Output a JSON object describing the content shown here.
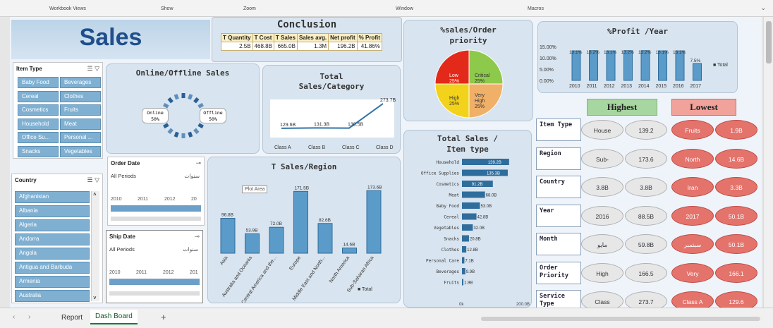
{
  "ribbon": {
    "groups": [
      "Workbook Views",
      "Show",
      "Zoom",
      "Window",
      "Macros"
    ]
  },
  "header": {
    "title": "Sales"
  },
  "conclusion": {
    "title": "Conclusion",
    "headers": [
      "T Quantity",
      "T Cost",
      "T Sales",
      "Sales avg.",
      "Net profit",
      "% Profit"
    ],
    "values": [
      "2.5B",
      "468.8B",
      "665.0B",
      "1.3M",
      "196.2B",
      "41.86%"
    ]
  },
  "item_type_slicer": {
    "title": "Item Type",
    "items": [
      "Baby Food",
      "Beverages",
      "Cereal",
      "Clothes",
      "Cosmetics",
      "Fruits",
      "Household",
      "Meat",
      "Office Su...",
      "Personal ...",
      "Snacks",
      "Vegetables"
    ]
  },
  "country_slicer": {
    "title": "Country",
    "items": [
      "Afghanistan",
      "Albania",
      "Algeria",
      "Andorra",
      "Angola",
      "Antigua and Barbuda",
      "Armenia",
      "Australia"
    ]
  },
  "order_date": {
    "title": "Order Date",
    "period": "All Periods",
    "unit": "سنوات",
    "years": [
      "2010",
      "2011",
      "2012",
      "20"
    ]
  },
  "ship_date": {
    "title": "Ship Date",
    "period": "All Periods",
    "unit": "سنوات",
    "years": [
      "2010",
      "2011",
      "2012",
      "201"
    ]
  },
  "online_offline": {
    "title": "Online/Offline Sales",
    "online_label": "Online",
    "online_value": "50%",
    "offline_label": "Offline",
    "offline_value": "50%"
  },
  "sales_category": {
    "title_line1": "Total",
    "title_line2": "Sales/Category"
  },
  "sales_region": {
    "title": "T Sales/Region",
    "tooltip": "Plot Area",
    "legend": "Total"
  },
  "sales_item": {
    "title_line1": "Total Sales /",
    "title_line2": "Item type",
    "axis_min": "0k",
    "axis_max": "200.0B"
  },
  "priority": {
    "title_line1": "%sales/Order",
    "title_line2": "priority",
    "quadrants": [
      {
        "label": "Low",
        "value": "25%",
        "color": "#e32a1a"
      },
      {
        "label": "Critical",
        "value": "25%",
        "color": "#8dc94a"
      },
      {
        "label": "High",
        "value": "25%",
        "color": "#f2d21a"
      },
      {
        "label": "Very High",
        "value": "25%",
        "color": "#f0b068"
      }
    ]
  },
  "profit_year": {
    "title": "%Profit /Year",
    "legend": "Total"
  },
  "highest_lowest": {
    "highest": "Highest",
    "lowest": "Lowest",
    "rows": [
      {
        "label": "Item Type",
        "high_name": "House",
        "high_value": "139.2",
        "low_name": "Fruits",
        "low_value": "1.9B"
      },
      {
        "label": "Region",
        "high_name": "Sub-",
        "high_value": "173.6",
        "low_name": "North",
        "low_value": "14.6B"
      },
      {
        "label": "Country",
        "high_name": "3.8B",
        "high_value": "3.8B",
        "low_name": "Iran",
        "low_value": "3.3B"
      },
      {
        "label": "Year",
        "high_name": "2016",
        "high_value": "88.5B",
        "low_name": "2017",
        "low_value": "50.1B"
      },
      {
        "label": "Month",
        "high_name": "مايو",
        "high_value": "59.8B",
        "low_name": "سبتمبر",
        "low_value": "50.1B"
      },
      {
        "label": "Order Priority",
        "high_name": "High",
        "high_value": "166.5",
        "low_name": "Very",
        "low_value": "166.1"
      },
      {
        "label": "Service Type",
        "high_name": "Class",
        "high_value": "273.7",
        "low_name": "Class A",
        "low_value": "129.6"
      }
    ]
  },
  "tabs": {
    "items": [
      "Report",
      "Dash Board"
    ],
    "add": "+"
  },
  "colors": {
    "accent": "#2f73a8",
    "bar": "#5b9bc9",
    "header_blue": "#1f4e8a"
  },
  "chart_data": [
    {
      "type": "line",
      "title": "Total Sales/Category",
      "categories": [
        "Class A",
        "Class B",
        "Class C",
        "Class D"
      ],
      "values": [
        129.6,
        131.3,
        130.5,
        273.7
      ],
      "data_labels": [
        "129.6B",
        "131.3B",
        "130.5B",
        "273.7B"
      ],
      "unit": "B"
    },
    {
      "type": "bar",
      "title": "T Sales/Region",
      "categories": [
        "Asia",
        "Australia and Oceania",
        "Central America and the...",
        "Europe",
        "Middle East and North...",
        "North America",
        "Sub-Saharan Africa"
      ],
      "values": [
        96.8,
        53.9,
        72.0,
        171.5,
        82.6,
        14.6,
        173.6
      ],
      "data_labels": [
        "96.8B",
        "53.9B",
        "72.0B",
        "171.5B",
        "82.6B",
        "14.6B",
        "173.6B"
      ],
      "series": [
        {
          "name": "Total",
          "values": [
            96.8,
            53.9,
            72.0,
            171.5,
            82.6,
            14.6,
            173.6
          ]
        }
      ],
      "unit": "B"
    },
    {
      "type": "bar",
      "orientation": "horizontal",
      "title": "Total Sales / Item type",
      "categories": [
        "Household",
        "Office Supplies",
        "Cosmetics",
        "Meat",
        "Baby Food",
        "Cereal",
        "Vegetables",
        "Snacks",
        "Clothes",
        "Personal Care",
        "Beverages",
        "Fruits"
      ],
      "values": [
        139.2,
        135.3,
        91.2,
        68.0,
        53.0,
        42.8,
        32.0,
        20.8,
        12.8,
        7.1,
        9.9,
        1.9
      ],
      "data_labels": [
        "139.2B",
        "135.3B",
        "91.2B",
        "68.0B",
        "53.0B",
        "42.8B",
        "32.0B",
        "20.8B",
        "12.8B",
        "7.1B",
        "9.9B",
        "1.9B"
      ],
      "xlim": [
        0,
        200
      ],
      "unit": "B"
    },
    {
      "type": "bar",
      "title": "%Profit /Year",
      "categories": [
        "2010",
        "2011",
        "2012",
        "2013",
        "2014",
        "2015",
        "2016",
        "2017"
      ],
      "values": [
        13.1,
        13.2,
        13.1,
        13.2,
        13.2,
        13.1,
        13.1,
        7.5
      ],
      "data_labels": [
        "13.1%",
        "13.2%",
        "13.1%",
        "13.2%",
        "13.2%",
        "13.1%",
        "13.1%",
        "7.5%"
      ],
      "yticks": [
        "0.00%",
        "5.00%",
        "10.00%",
        "15.00%"
      ],
      "ylim": [
        0,
        15
      ],
      "series": [
        {
          "name": "Total",
          "values": [
            13.1,
            13.2,
            13.1,
            13.2,
            13.2,
            13.1,
            13.1,
            7.5
          ]
        }
      ]
    },
    {
      "type": "pie",
      "title": "Online/Offline Sales",
      "categories": [
        "Online",
        "Offline"
      ],
      "values": [
        50,
        50
      ]
    },
    {
      "type": "pie",
      "title": "%sales/Order priority",
      "categories": [
        "Low",
        "Critical",
        "High",
        "Very High"
      ],
      "values": [
        25,
        25,
        25,
        25
      ]
    }
  ]
}
